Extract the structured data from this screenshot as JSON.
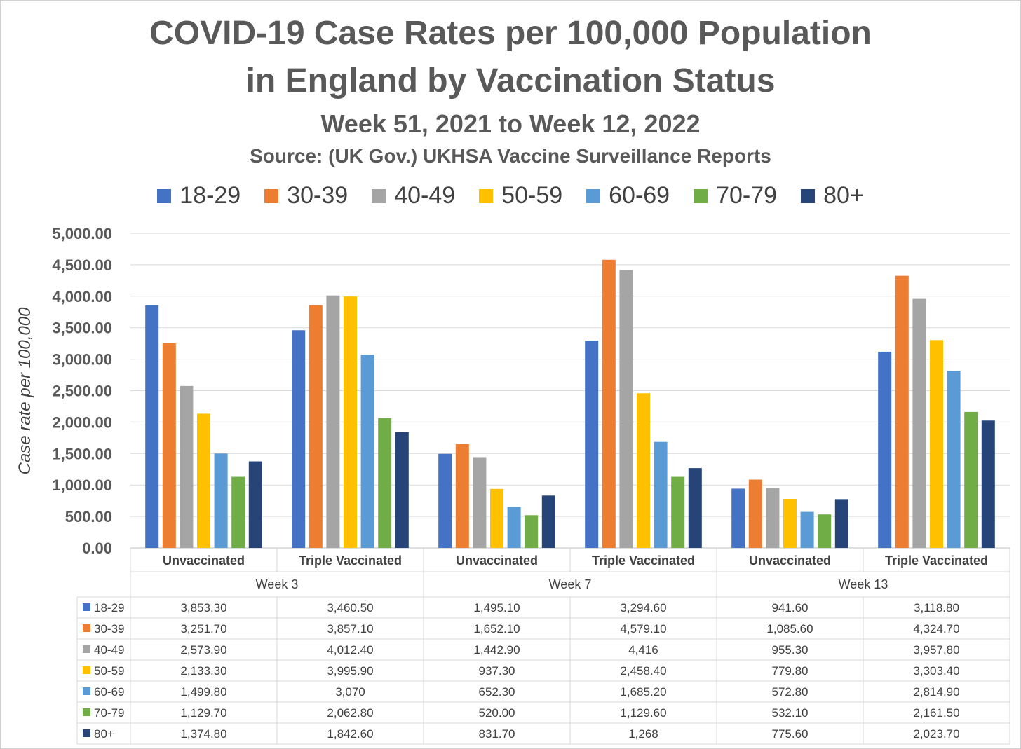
{
  "title_line1": "COVID-19 Case Rates per 100,000 Population",
  "title_line2": "in England by Vaccination Status",
  "subtitle": "Week 51, 2021 to Week 12, 2022",
  "source": "Source: (UK Gov.) UKHSA Vaccine Surveillance Reports",
  "chart_data": {
    "type": "bar",
    "ylabel": "Case rate per 100,000",
    "ylim": [
      0,
      5000
    ],
    "y_ticks": [
      "0.00",
      "500.00",
      "1,000.00",
      "1,500.00",
      "2,000.00",
      "2,500.00",
      "3,000.00",
      "3,500.00",
      "4,000.00",
      "4,500.00",
      "5,000.00"
    ],
    "grid": true,
    "legend_position": "top",
    "weeks": [
      "Week 3",
      "Week 7",
      "Week 13"
    ],
    "categories": [
      "Unvaccinated",
      "Triple Vaccinated",
      "Unvaccinated",
      "Triple Vaccinated",
      "Unvaccinated",
      "Triple Vaccinated"
    ],
    "series": [
      {
        "name": "18-29",
        "color": "#4472c4",
        "values": [
          3853.3,
          3460.5,
          1495.1,
          3294.6,
          941.6,
          3118.8
        ],
        "labels": [
          "3,853.30",
          "3,460.50",
          "1,495.10",
          "3,294.60",
          "941.60",
          "3,118.80"
        ]
      },
      {
        "name": "30-39",
        "color": "#ed7d31",
        "values": [
          3251.7,
          3857.1,
          1652.1,
          4579.1,
          1085.6,
          4324.7
        ],
        "labels": [
          "3,251.70",
          "3,857.10",
          "1,652.10",
          "4,579.10",
          "1,085.60",
          "4,324.70"
        ]
      },
      {
        "name": "40-49",
        "color": "#a5a5a5",
        "values": [
          2573.9,
          4012.4,
          1442.9,
          4416,
          955.3,
          3957.8
        ],
        "labels": [
          "2,573.90",
          "4,012.40",
          "1,442.90",
          "4,416",
          "955.30",
          "3,957.80"
        ]
      },
      {
        "name": "50-59",
        "color": "#ffc000",
        "values": [
          2133.3,
          3995.9,
          937.3,
          2458.4,
          779.8,
          3303.4
        ],
        "labels": [
          "2,133.30",
          "3,995.90",
          "937.30",
          "2,458.40",
          "779.80",
          "3,303.40"
        ]
      },
      {
        "name": "60-69",
        "color": "#5b9bd5",
        "values": [
          1499.8,
          3070,
          652.3,
          1685.2,
          572.8,
          2814.9
        ],
        "labels": [
          "1,499.80",
          "3,070",
          "652.30",
          "1,685.20",
          "572.80",
          "2,814.90"
        ]
      },
      {
        "name": "70-79",
        "color": "#70ad47",
        "values": [
          1129.7,
          2062.8,
          520,
          1129.6,
          532.1,
          2161.5
        ],
        "labels": [
          "1,129.70",
          "2,062.80",
          "520.00",
          "1,129.60",
          "532.10",
          "2,161.50"
        ]
      },
      {
        "name": "80+",
        "color": "#264478",
        "values": [
          1374.8,
          1842.6,
          831.7,
          1268,
          775.6,
          2023.7
        ],
        "labels": [
          "1,374.80",
          "1,842.60",
          "831.70",
          "1,268",
          "775.60",
          "2,023.70"
        ]
      }
    ]
  }
}
